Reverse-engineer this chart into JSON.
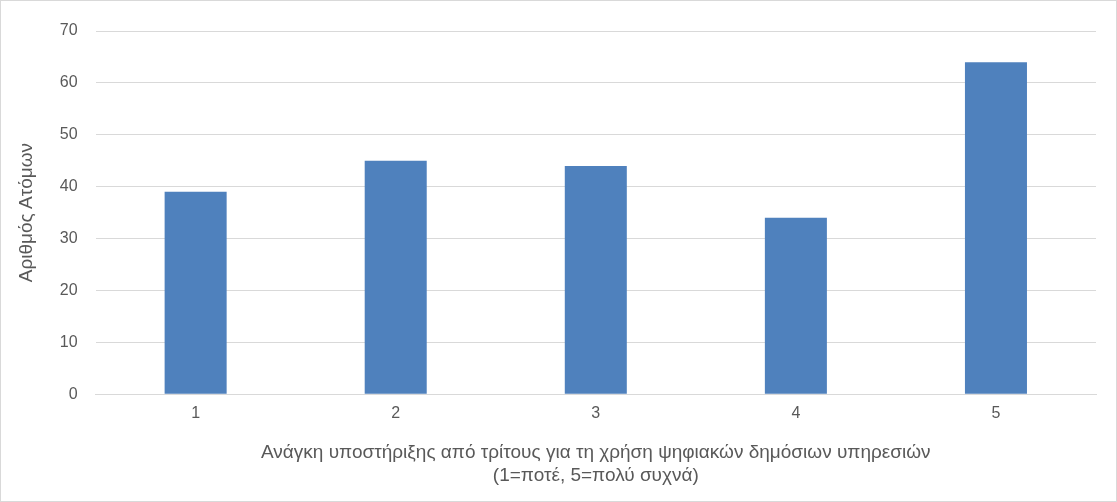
{
  "chart_data": {
    "type": "bar",
    "xlabel": "Ανάγκη υποστήριξης από τρίτους για τη χρήση ψηφιακών δημόσιων υπηρεσιών\n(1=ποτέ, 5=πολύ συχνά)",
    "ylabel": "Αριθμός Ατόμων",
    "categories": [
      "1",
      "2",
      "3",
      "4",
      "5"
    ],
    "values": [
      39,
      45,
      44,
      34,
      64
    ],
    "color": "#4f81bd",
    "ylim": [
      0,
      70
    ],
    "yticks": [
      0,
      10,
      20,
      30,
      40,
      50,
      60,
      70
    ],
    "grid": "y",
    "legend": false
  }
}
